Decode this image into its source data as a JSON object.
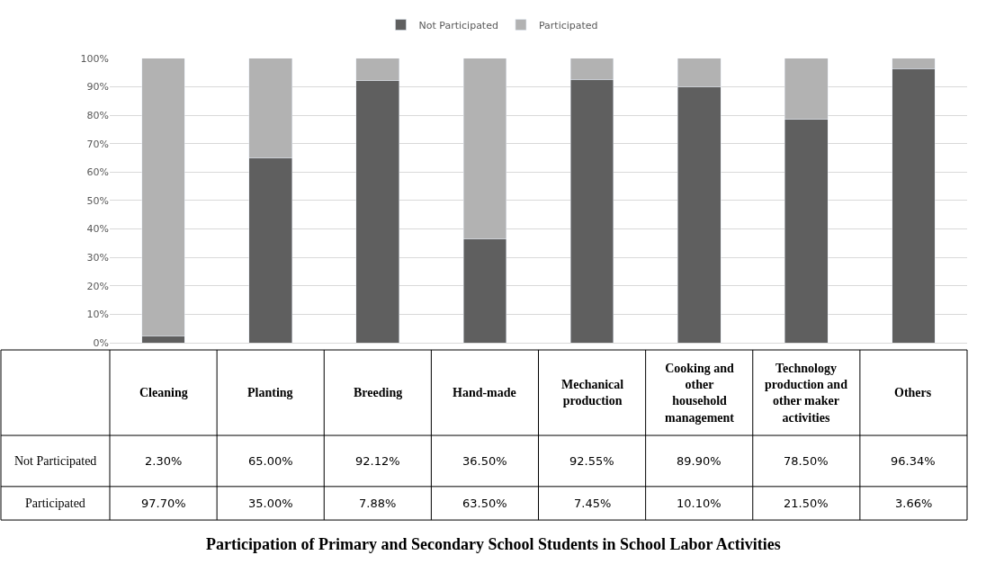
{
  "chart_data": {
    "type": "bar",
    "stacked": true,
    "title": "Participation of Primary and Secondary School Students in School Labor Activities",
    "categories": [
      "Cleaning",
      "Planting",
      "Breeding",
      "Hand-made",
      "Mechanical production",
      "Cooking and other household management",
      "Technology production and other maker activities",
      "Others"
    ],
    "series": [
      {
        "name": "Not Participated",
        "color": "#5f5f5f",
        "values": [
          2.3,
          65.0,
          92.12,
          36.5,
          92.55,
          89.9,
          78.5,
          96.34
        ],
        "value_labels": [
          "2.30%",
          "65.00%",
          "92.12%",
          "36.50%",
          "92.55%",
          "89.90%",
          "78.50%",
          "96.34%"
        ]
      },
      {
        "name": "Participated",
        "color": "#b2b2b2",
        "values": [
          97.7,
          35.0,
          7.88,
          63.5,
          7.45,
          10.1,
          21.5,
          3.66
        ],
        "value_labels": [
          "97.70%",
          "35.00%",
          "7.88%",
          "63.50%",
          "7.45%",
          "10.10%",
          "21.50%",
          "3.66%"
        ]
      }
    ],
    "ylim": [
      0,
      100
    ],
    "yticks": [
      {
        "value": 0,
        "label": "0%"
      },
      {
        "value": 10,
        "label": "10%"
      },
      {
        "value": 20,
        "label": "20%"
      },
      {
        "value": 30,
        "label": "30%"
      },
      {
        "value": 40,
        "label": "40%"
      },
      {
        "value": 50,
        "label": "50%"
      },
      {
        "value": 60,
        "label": "60%"
      },
      {
        "value": 70,
        "label": "70%"
      },
      {
        "value": 80,
        "label": "80%"
      },
      {
        "value": 90,
        "label": "90%"
      },
      {
        "value": 100,
        "label": "100%"
      }
    ],
    "grid": "y",
    "legend": "top"
  }
}
